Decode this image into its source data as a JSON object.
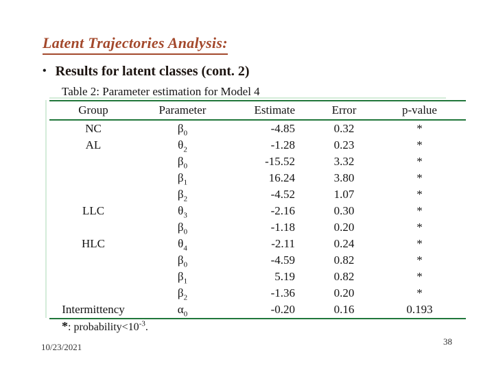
{
  "slide": {
    "title": "Latent Trajectories Analysis:",
    "bullet_glyph": "•",
    "bullet": "Results for latent classes (cont. 2)",
    "caption": "Table 2: Parameter estimation for Model 4",
    "footnote": {
      "star": "*",
      "pre": ": probability<10",
      "sup": "-3",
      "post": "."
    },
    "footer": {
      "date": "10/23/2021",
      "page": "38"
    }
  },
  "colors": {
    "title": "#a3482b",
    "rule_dark": "#20763a",
    "rule_light": "#d4ecd9",
    "text": "#1a1a1a"
  },
  "table": {
    "headers": [
      "Group",
      "Parameter",
      "Estimate",
      "Error",
      "p-value"
    ],
    "rows": [
      {
        "group": "NC",
        "param_base": "β",
        "param_sub": "0",
        "estimate": "-4.85",
        "error": "0.32",
        "pvalue": "*"
      },
      {
        "group": "AL",
        "param_base": "θ",
        "param_sub": "2",
        "estimate": "-1.28",
        "error": "0.23",
        "pvalue": "*"
      },
      {
        "group": "",
        "param_base": "β",
        "param_sub": "0",
        "estimate": "-15.52",
        "error": "3.32",
        "pvalue": "*"
      },
      {
        "group": "",
        "param_base": "β",
        "param_sub": "1",
        "estimate": "16.24",
        "error": "3.80",
        "pvalue": "*"
      },
      {
        "group": "",
        "param_base": "β",
        "param_sub": "2",
        "estimate": "-4.52",
        "error": "1.07",
        "pvalue": "*"
      },
      {
        "group": "LLC",
        "param_base": "θ",
        "param_sub": "3",
        "estimate": "-2.16",
        "error": "0.30",
        "pvalue": "*"
      },
      {
        "group": "",
        "param_base": "β",
        "param_sub": "0",
        "estimate": "-1.18",
        "error": "0.20",
        "pvalue": "*"
      },
      {
        "group": "HLC",
        "param_base": "θ",
        "param_sub": "4",
        "estimate": "-2.11",
        "error": "0.24",
        "pvalue": "*"
      },
      {
        "group": "",
        "param_base": "β",
        "param_sub": "0",
        "estimate": "-4.59",
        "error": "0.82",
        "pvalue": "*"
      },
      {
        "group": "",
        "param_base": "β",
        "param_sub": "1",
        "estimate": "5.19",
        "error": "0.82",
        "pvalue": "*"
      },
      {
        "group": "",
        "param_base": "β",
        "param_sub": "2",
        "estimate": "-1.36",
        "error": "0.20",
        "pvalue": "*"
      },
      {
        "group": "Intermittency",
        "param_base": "α",
        "param_sub": "0",
        "estimate": "-0.20",
        "error": "0.16",
        "pvalue": "0.193"
      }
    ]
  }
}
